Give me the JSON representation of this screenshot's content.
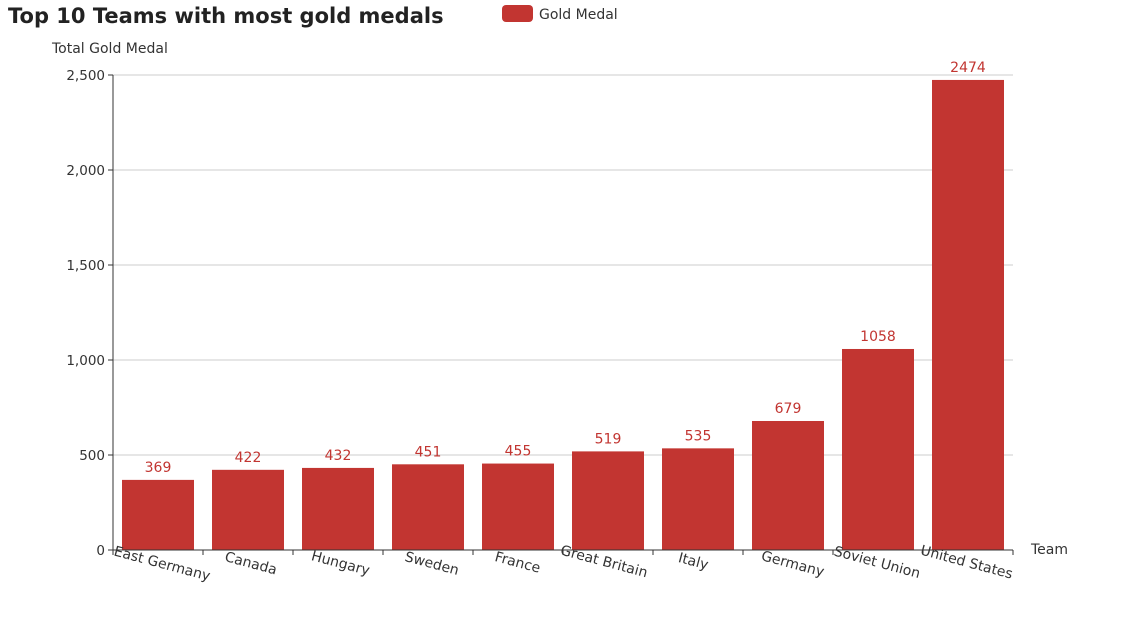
{
  "chart_data": {
    "type": "bar",
    "title": "Top 10 Teams with most gold medals",
    "ylabel": "Total Gold Medal",
    "xlabel": "Team",
    "categories": [
      "East Germany",
      "Canada",
      "Hungary",
      "Sweden",
      "France",
      "Great Britain",
      "Italy",
      "Germany",
      "Soviet Union",
      "United States"
    ],
    "series": [
      {
        "name": "Gold Medal",
        "values": [
          369,
          422,
          432,
          451,
          455,
          519,
          535,
          679,
          1058,
          2474
        ]
      }
    ],
    "ylim": [
      0,
      2500
    ],
    "yticks": [
      0,
      500,
      1000,
      1500,
      2000,
      2500
    ],
    "ytick_labels": [
      "0",
      "500",
      "1,000",
      "1,500",
      "2,000",
      "2,500"
    ],
    "grid": true,
    "legend_position": "top",
    "bar_color": "#c23531",
    "value_labels": true
  }
}
